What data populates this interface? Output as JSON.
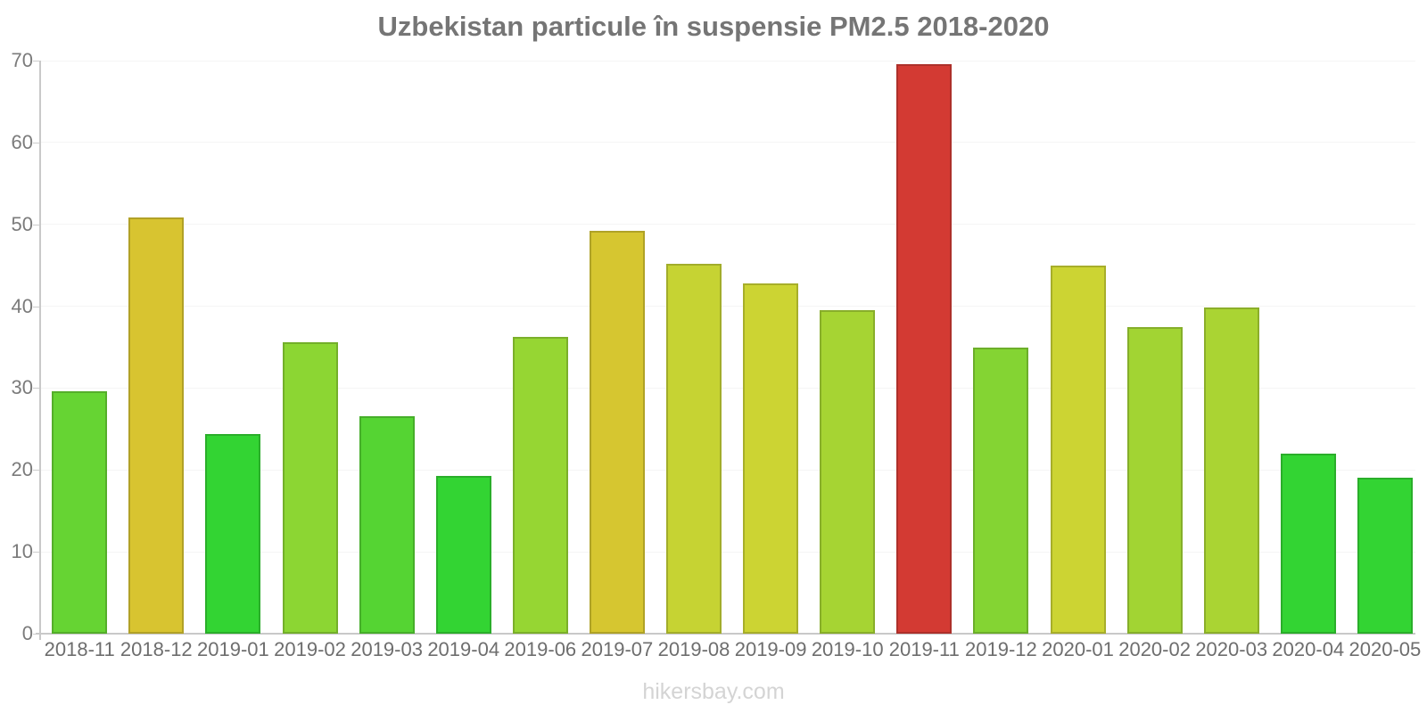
{
  "title": "Uzbekistan particule în suspensie PM2.5 2018-2020",
  "footer": "hikersbay.com",
  "chart_data": {
    "type": "bar",
    "title": "Uzbekistan particule în suspensie PM2.5 2018-2020",
    "xlabel": "",
    "ylabel": "",
    "ylim": [
      0,
      70
    ],
    "yticks": [
      0,
      10,
      20,
      30,
      40,
      50,
      60,
      70
    ],
    "grid": true,
    "legend_position": "none",
    "categories": [
      "2018-11",
      "2018-12",
      "2019-01",
      "2019-02",
      "2019-03",
      "2019-04",
      "2019-06",
      "2019-07",
      "2019-08",
      "2019-09",
      "2019-10",
      "2019-11",
      "2019-12",
      "2020-01",
      "2020-02",
      "2020-03",
      "2020-04",
      "2020-05"
    ],
    "values": [
      29.6,
      50.8,
      24.4,
      35.6,
      26.6,
      19.3,
      36.2,
      49.2,
      45.2,
      42.8,
      39.5,
      69.6,
      35.0,
      45.0,
      37.5,
      39.8,
      22.0,
      19.0
    ],
    "bar_colors": [
      "#66d433",
      "#d8c430",
      "#33d433",
      "#8cd633",
      "#55d433",
      "#33d433",
      "#96d633",
      "#d6c630",
      "#c6d333",
      "#ccd433",
      "#a6d433",
      "#d33a33",
      "#84d433",
      "#ccd433",
      "#a2d433",
      "#aad433",
      "#33d433",
      "#33d433"
    ],
    "colors": {
      "title": "#757575",
      "axis": "#c9c9c9",
      "gridline": "#f5f5f5",
      "y_tick_label": "#7b7b7b",
      "x_tick_label": "#6e6e6e",
      "watermark": "#d4d4d4",
      "peak_bar": "#d33a33",
      "low_bar": "#33d433"
    }
  }
}
